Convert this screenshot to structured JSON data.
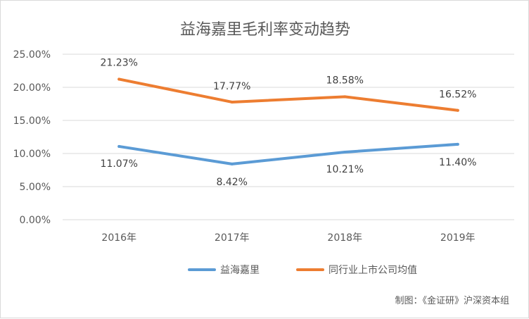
{
  "chart_data": {
    "type": "line",
    "title": "益海嘉里毛利率变动趋势",
    "categories": [
      "2016年",
      "2017年",
      "2018年",
      "2019年"
    ],
    "series": [
      {
        "name": "益海嘉里",
        "values": [
          11.07,
          8.42,
          10.21,
          11.4
        ],
        "labels": [
          "11.07%",
          "8.42%",
          "10.21%",
          "11.40%"
        ],
        "color": "#5b9bd5"
      },
      {
        "name": "同行业上市公司均值",
        "values": [
          21.23,
          17.77,
          18.58,
          16.52
        ],
        "labels": [
          "21.23%",
          "17.77%",
          "18.58%",
          "16.52%"
        ],
        "color": "#ed7d31"
      }
    ],
    "ylim": [
      0,
      25
    ],
    "yticks": [
      "0.00%",
      "5.00%",
      "10.00%",
      "15.00%",
      "20.00%",
      "25.00%"
    ],
    "grid": true,
    "legend": "bottom"
  },
  "credit": "制图：《金证研》沪深资本组"
}
